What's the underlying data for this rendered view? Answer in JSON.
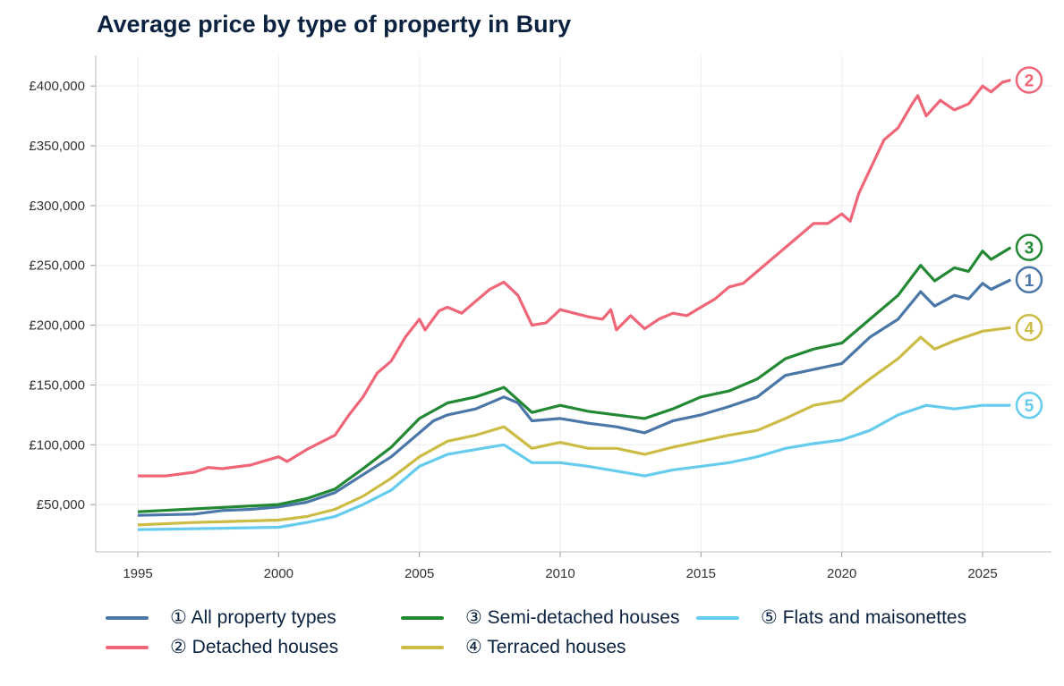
{
  "chart_data": {
    "type": "line",
    "title": "Average price by type of property in Bury",
    "xlabel": "",
    "ylabel": "",
    "xlim": [
      1993.5,
      2027.5
    ],
    "ylim": [
      10000,
      425000
    ],
    "x_ticks": [
      "1995",
      "2000",
      "2005",
      "2010",
      "2015",
      "2020",
      "2025"
    ],
    "y_ticks": [
      {
        "value": 50000,
        "label": "£50,000"
      },
      {
        "value": 100000,
        "label": "£100,000"
      },
      {
        "value": 150000,
        "label": "£150,000"
      },
      {
        "value": 200000,
        "label": "£200,000"
      },
      {
        "value": 250000,
        "label": "£250,000"
      },
      {
        "value": 300000,
        "label": "£300,000"
      },
      {
        "value": 350000,
        "label": "£350,000"
      },
      {
        "value": 400000,
        "label": "£400,000"
      }
    ],
    "grid": true,
    "legend_position": "bottom",
    "series": [
      {
        "name": "① All property types",
        "end_label": "1",
        "color": "#4a77a8",
        "x": [
          1995,
          1997,
          1998,
          1999,
          2000,
          2001,
          2002,
          2003,
          2004,
          2005,
          2005.5,
          2006,
          2007,
          2008,
          2008.5,
          2009,
          2010,
          2011,
          2012,
          2013,
          2014,
          2015,
          2016,
          2017,
          2018,
          2019,
          2020,
          2021,
          2022,
          2022.8,
          2023.3,
          2024,
          2024.5,
          2025,
          2025.3,
          2026
        ],
        "y": [
          41000,
          42000,
          45000,
          46000,
          48000,
          52000,
          60000,
          75000,
          90000,
          110000,
          120000,
          125000,
          130000,
          140000,
          135000,
          120000,
          122000,
          118000,
          115000,
          110000,
          120000,
          125000,
          132000,
          140000,
          158000,
          163000,
          168000,
          190000,
          205000,
          228000,
          216000,
          225000,
          222000,
          235000,
          230000,
          238000
        ]
      },
      {
        "name": "② Detached houses",
        "end_label": "2",
        "color": "#ee6677",
        "x": [
          1995,
          1996,
          1997,
          1997.5,
          1998,
          1999,
          2000,
          2000.3,
          2001,
          2002,
          2002.5,
          2003,
          2003.5,
          2004,
          2004.5,
          2005,
          2005.2,
          2005.7,
          2006,
          2006.5,
          2007,
          2007.5,
          2008,
          2008.5,
          2009,
          2009.5,
          2010,
          2010.5,
          2011,
          2011.5,
          2011.8,
          2012,
          2012.5,
          2013,
          2013.5,
          2014,
          2014.5,
          2015,
          2015.5,
          2016,
          2016.5,
          2017,
          2017.5,
          2018,
          2018.5,
          2019,
          2019.5,
          2020,
          2020.3,
          2020.6,
          2021,
          2021.5,
          2022,
          2022.5,
          2022.7,
          2023,
          2023.5,
          2024,
          2024.5,
          2025,
          2025.3,
          2025.7,
          2026
        ],
        "y": [
          74000,
          74000,
          77000,
          81000,
          80000,
          83000,
          90000,
          86000,
          96000,
          108000,
          125000,
          140000,
          160000,
          170000,
          190000,
          205000,
          196000,
          212000,
          215000,
          210000,
          220000,
          230000,
          236000,
          225000,
          200000,
          202000,
          213000,
          210000,
          207000,
          205000,
          213000,
          196000,
          208000,
          197000,
          205000,
          210000,
          208000,
          215000,
          222000,
          232000,
          235000,
          245000,
          255000,
          265000,
          275000,
          285000,
          285000,
          293000,
          287000,
          310000,
          330000,
          355000,
          365000,
          385000,
          392000,
          375000,
          388000,
          380000,
          385000,
          400000,
          395000,
          403000,
          405000
        ]
      },
      {
        "name": "③ Semi-detached houses",
        "end_label": "3",
        "color": "#228833",
        "x": [
          1995,
          2000,
          2001,
          2002,
          2003,
          2004,
          2005,
          2006,
          2007,
          2008,
          2009,
          2010,
          2011,
          2012,
          2013,
          2014,
          2015,
          2016,
          2017,
          2018,
          2019,
          2020,
          2021,
          2022,
          2022.8,
          2023.3,
          2024,
          2024.5,
          2025,
          2025.3,
          2026
        ],
        "y": [
          44000,
          50000,
          55000,
          63000,
          80000,
          98000,
          122000,
          135000,
          140000,
          148000,
          127000,
          133000,
          128000,
          125000,
          122000,
          130000,
          140000,
          145000,
          155000,
          172000,
          180000,
          185000,
          205000,
          225000,
          250000,
          237000,
          248000,
          245000,
          262000,
          255000,
          265000
        ]
      },
      {
        "name": "④ Terraced houses",
        "end_label": "4",
        "color": "#ccbb44",
        "x": [
          1995,
          1997,
          2000,
          2001,
          2002,
          2003,
          2004,
          2005,
          2006,
          2007,
          2008,
          2009,
          2010,
          2011,
          2012,
          2013,
          2014,
          2015,
          2016,
          2017,
          2018,
          2019,
          2020,
          2021,
          2022,
          2022.8,
          2023.3,
          2024,
          2025,
          2026
        ],
        "y": [
          33000,
          35000,
          37000,
          40000,
          46000,
          57000,
          72000,
          90000,
          103000,
          108000,
          115000,
          97000,
          102000,
          97000,
          97000,
          92000,
          98000,
          103000,
          108000,
          112000,
          122000,
          133000,
          137000,
          155000,
          172000,
          190000,
          180000,
          187000,
          195000,
          198000
        ]
      },
      {
        "name": "⑤ Flats and maisonettes",
        "end_label": "5",
        "color": "#66ccee",
        "x": [
          1995,
          2000,
          2001,
          2002,
          2003,
          2004,
          2005,
          2006,
          2007,
          2008,
          2009,
          2010,
          2011,
          2012,
          2013,
          2014,
          2015,
          2016,
          2017,
          2018,
          2019,
          2020,
          2021,
          2022,
          2023,
          2024,
          2025,
          2026
        ],
        "y": [
          29000,
          31000,
          35000,
          40000,
          50000,
          62000,
          82000,
          92000,
          96000,
          100000,
          85000,
          85000,
          82000,
          78000,
          74000,
          79000,
          82000,
          85000,
          90000,
          97000,
          101000,
          104000,
          112000,
          125000,
          133000,
          130000,
          133000,
          133000
        ]
      }
    ]
  }
}
